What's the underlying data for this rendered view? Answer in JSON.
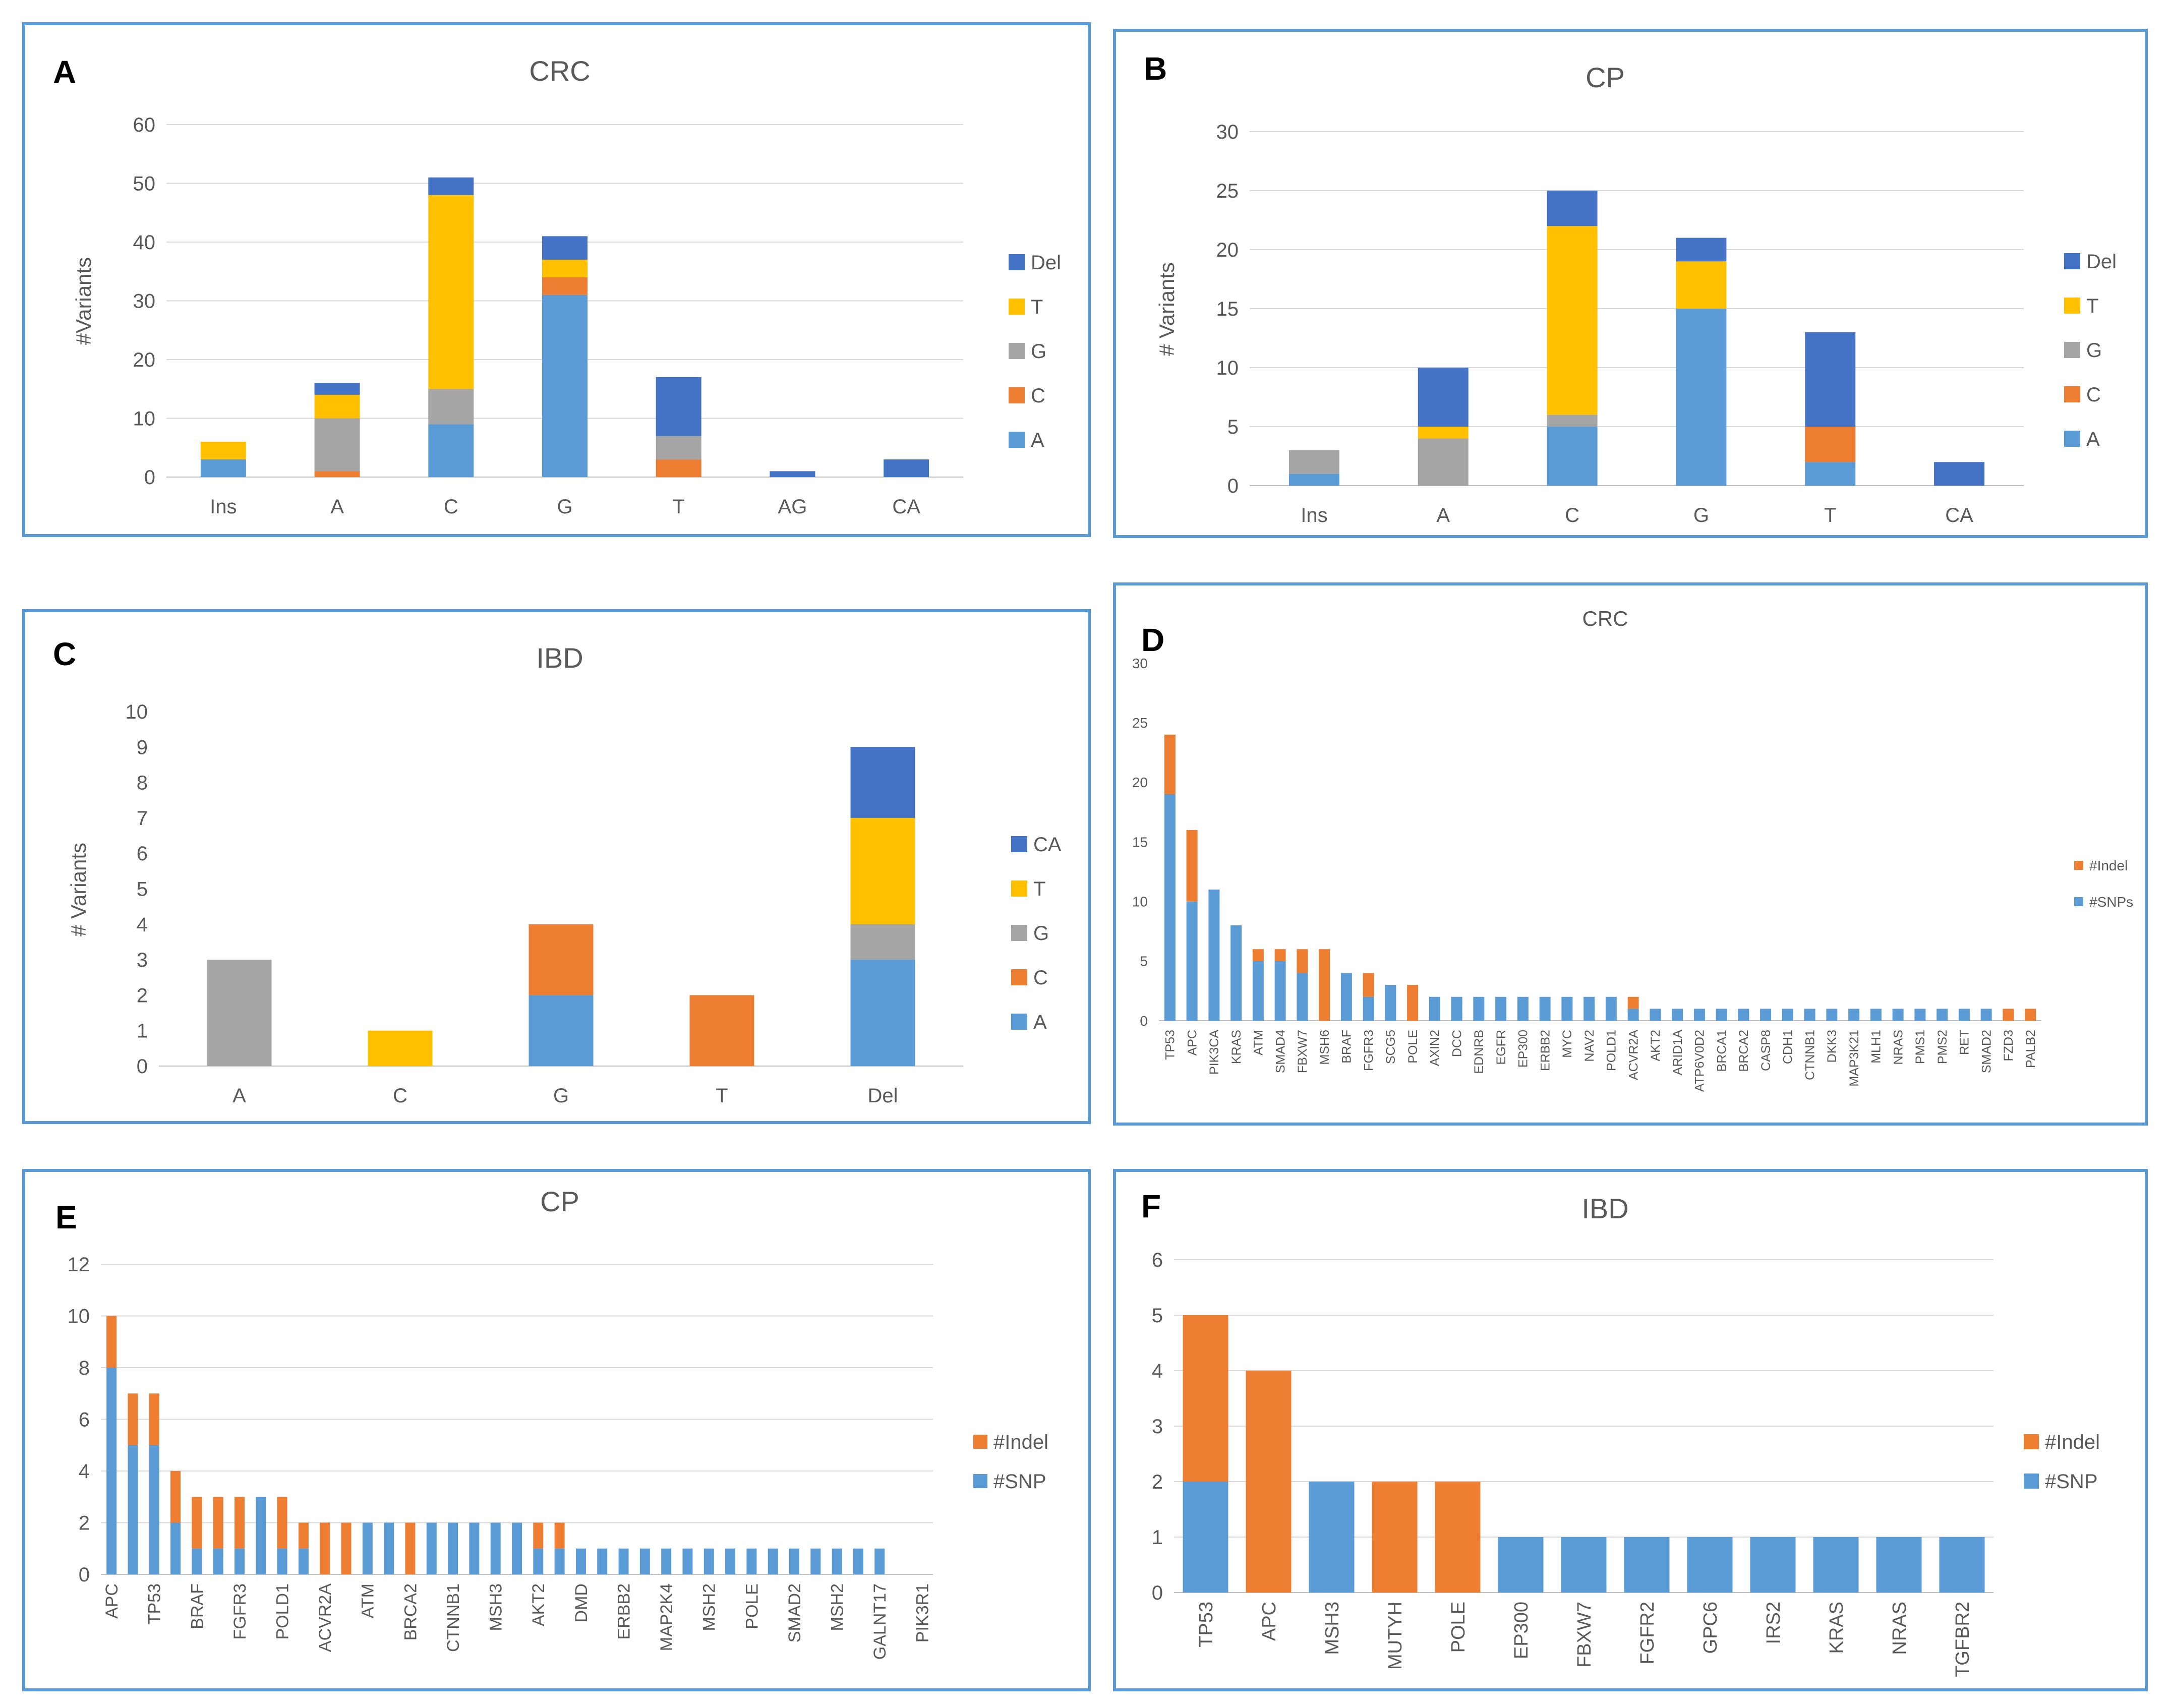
{
  "colors": {
    "A": "#5b9bd5",
    "C": "#ed7d31",
    "G": "#a5a5a5",
    "T": "#ffc000",
    "Del": "#4472c4",
    "CA": "#4472c4",
    "Indel": "#ed7d31",
    "SNP": "#5b9bd5"
  },
  "chart_data": [
    {
      "id": "A",
      "panel_label": "A",
      "type": "bar",
      "stacked": true,
      "title": "CRC",
      "ylabel": "#Variants",
      "ylim": [
        0,
        60
      ],
      "yticks": [
        0,
        10,
        20,
        30,
        40,
        50,
        60
      ],
      "grid": true,
      "legend": "right",
      "categories": [
        "Ins",
        "A",
        "C",
        "G",
        "T",
        "AG",
        "CA"
      ],
      "series": [
        {
          "name": "A",
          "color": "#5b9bd5",
          "values": [
            3,
            0,
            9,
            31,
            0,
            0,
            0
          ]
        },
        {
          "name": "C",
          "color": "#ed7d31",
          "values": [
            0,
            1,
            0,
            3,
            3,
            0,
            0
          ]
        },
        {
          "name": "G",
          "color": "#a5a5a5",
          "values": [
            0,
            9,
            6,
            0,
            4,
            0,
            0
          ]
        },
        {
          "name": "T",
          "color": "#ffc000",
          "values": [
            3,
            4,
            33,
            3,
            0,
            0,
            0
          ]
        },
        {
          "name": "Del",
          "color": "#4472c4",
          "values": [
            0,
            2,
            3,
            4,
            10,
            1,
            3
          ]
        }
      ]
    },
    {
      "id": "B",
      "panel_label": "B",
      "type": "bar",
      "stacked": true,
      "title": "CP",
      "ylabel": "# Variants",
      "ylim": [
        0,
        30
      ],
      "yticks": [
        0,
        5,
        10,
        15,
        20,
        25,
        30
      ],
      "grid": true,
      "legend": "right",
      "categories": [
        "Ins",
        "A",
        "C",
        "G",
        "T",
        "CA"
      ],
      "series": [
        {
          "name": "A",
          "color": "#5b9bd5",
          "values": [
            1,
            0,
            5,
            15,
            2,
            0
          ]
        },
        {
          "name": "C",
          "color": "#ed7d31",
          "values": [
            0,
            0,
            0,
            0,
            3,
            0
          ]
        },
        {
          "name": "G",
          "color": "#a5a5a5",
          "values": [
            2,
            4,
            1,
            0,
            0,
            0
          ]
        },
        {
          "name": "T",
          "color": "#ffc000",
          "values": [
            0,
            1,
            16,
            4,
            0,
            0
          ]
        },
        {
          "name": "Del",
          "color": "#4472c4",
          "values": [
            0,
            5,
            3,
            2,
            8,
            2
          ]
        }
      ]
    },
    {
      "id": "C",
      "panel_label": "C",
      "type": "bar",
      "stacked": true,
      "title": "IBD",
      "ylabel": "# Variants",
      "ylim": [
        0,
        10
      ],
      "yticks": [
        0,
        1,
        2,
        3,
        4,
        5,
        6,
        7,
        8,
        9,
        10
      ],
      "grid": false,
      "legend": "right",
      "categories": [
        "A",
        "C",
        "G",
        "T",
        "Del"
      ],
      "series": [
        {
          "name": "A",
          "color": "#5b9bd5",
          "values": [
            0,
            0,
            2,
            0,
            3
          ]
        },
        {
          "name": "C",
          "color": "#ed7d31",
          "values": [
            0,
            0,
            2,
            2,
            0
          ]
        },
        {
          "name": "G",
          "color": "#a5a5a5",
          "values": [
            3,
            0,
            0,
            0,
            1
          ]
        },
        {
          "name": "T",
          "color": "#ffc000",
          "values": [
            0,
            1,
            0,
            0,
            3
          ]
        },
        {
          "name": "CA",
          "color": "#4472c4",
          "values": [
            0,
            0,
            0,
            0,
            2
          ]
        }
      ]
    },
    {
      "id": "D",
      "panel_label": "D",
      "type": "bar",
      "stacked": true,
      "title": "CRC",
      "ylabel": "",
      "ylim": [
        0,
        30
      ],
      "yticks": [
        0,
        5,
        10,
        15,
        20,
        25,
        30
      ],
      "grid": false,
      "legend": "right",
      "categories": [
        "TP53",
        "APC",
        "PIK3CA",
        "KRAS",
        "ATM",
        "SMAD4",
        "FBXW7",
        "MSH6",
        "BRAF",
        "FGFR3",
        "SCG5",
        "POLE",
        "AXIN2",
        "DCC",
        "EDNRB",
        "EGFR",
        "EP300",
        "ERBB2",
        "MYC",
        "NAV2",
        "POLD1",
        "ACVR2A",
        "AKT2",
        "ARID1A",
        "ATP6V0D2",
        "BRCA1",
        "BRCA2",
        "CASP8",
        "CDH1",
        "CTNNB1",
        "DKK3",
        "MAP3K21",
        "MLH1",
        "NRAS",
        "PMS1",
        "PMS2",
        "RET",
        "SMAD2",
        "FZD3",
        "PALB2"
      ],
      "series": [
        {
          "name": "#SNPs",
          "color": "#5b9bd5",
          "values": [
            19,
            10,
            11,
            8,
            5,
            5,
            4,
            0,
            4,
            2,
            3,
            0,
            2,
            2,
            2,
            2,
            2,
            2,
            2,
            2,
            2,
            1,
            1,
            1,
            1,
            1,
            1,
            1,
            1,
            1,
            1,
            1,
            1,
            1,
            1,
            1,
            1,
            1,
            0,
            0
          ]
        },
        {
          "name": "#Indel",
          "color": "#ed7d31",
          "values": [
            5,
            6,
            0,
            0,
            1,
            1,
            2,
            6,
            0,
            2,
            0,
            3,
            0,
            0,
            0,
            0,
            0,
            0,
            0,
            0,
            0,
            1,
            0,
            0,
            0,
            0,
            0,
            0,
            0,
            0,
            0,
            0,
            0,
            0,
            0,
            0,
            0,
            0,
            1,
            1
          ]
        }
      ]
    },
    {
      "id": "E",
      "panel_label": "E",
      "type": "bar",
      "stacked": true,
      "title": "CP",
      "ylabel": "",
      "ylim": [
        0,
        12
      ],
      "yticks": [
        0,
        2,
        4,
        6,
        8,
        10,
        12
      ],
      "grid": true,
      "legend": "right",
      "categories": [
        "APC",
        "",
        "TP53",
        "",
        "BRAF",
        "",
        "FGFR3",
        "",
        "POLD1",
        "",
        "ACVR2A",
        "",
        "ATM",
        "",
        "BRCA2",
        "",
        "CTNNB1",
        "",
        "MSH3",
        "",
        "AKT2",
        "",
        "DMD",
        "",
        "ERBB2",
        "",
        "MAP2K4",
        "",
        "MSH2",
        "",
        "POLE",
        "",
        "SMAD2",
        "",
        "MSH2",
        "",
        "GALNT17",
        "",
        "PIK3R1"
      ],
      "series": [
        {
          "name": "#SNP",
          "color": "#5b9bd5",
          "values": [
            8,
            5,
            5,
            2,
            1,
            1,
            1,
            3,
            1,
            1,
            0,
            0,
            2,
            2,
            0,
            2,
            2,
            2,
            2,
            2,
            1,
            1,
            1,
            1,
            1,
            1,
            1,
            1,
            1,
            1,
            1,
            1,
            1,
            1,
            1,
            1,
            1,
            0,
            0
          ]
        },
        {
          "name": "#Indel",
          "color": "#ed7d31",
          "values": [
            2,
            2,
            2,
            2,
            2,
            2,
            2,
            0,
            2,
            1,
            2,
            2,
            0,
            0,
            2,
            0,
            0,
            0,
            0,
            0,
            1,
            1,
            0,
            0,
            0,
            0,
            0,
            0,
            0,
            0,
            0,
            0,
            0,
            0,
            0,
            0,
            0,
            0,
            0
          ]
        }
      ]
    },
    {
      "id": "F",
      "panel_label": "F",
      "type": "bar",
      "stacked": true,
      "title": "IBD",
      "ylabel": "",
      "ylim": [
        0,
        6
      ],
      "yticks": [
        0,
        1,
        2,
        3,
        4,
        5,
        6
      ],
      "grid": true,
      "legend": "right",
      "categories": [
        "TP53",
        "APC",
        "MSH3",
        "MUTYH",
        "POLE",
        "EP300",
        "FBXW7",
        "FGFR2",
        "GPC6",
        "IRS2",
        "KRAS",
        "NRAS",
        "TGFBR2"
      ],
      "series": [
        {
          "name": "#SNP",
          "color": "#5b9bd5",
          "values": [
            2,
            0,
            2,
            0,
            0,
            1,
            1,
            1,
            1,
            1,
            1,
            1,
            1
          ]
        },
        {
          "name": "#Indel",
          "color": "#ed7d31",
          "values": [
            3,
            4,
            0,
            2,
            2,
            0,
            0,
            0,
            0,
            0,
            0,
            0,
            0
          ]
        }
      ]
    }
  ]
}
